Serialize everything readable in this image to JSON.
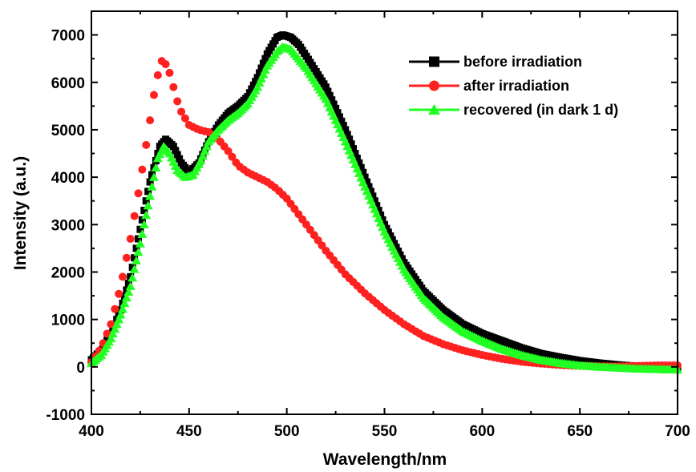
{
  "chart_data": {
    "type": "scatter",
    "xlabel": "Wavelength/nm",
    "ylabel": "Intensity (a.u.)",
    "xlim": [
      400,
      700
    ],
    "ylim": [
      -1000,
      7500
    ],
    "x_ticks": [
      400,
      450,
      500,
      550,
      600,
      650,
      700
    ],
    "y_ticks": [
      -1000,
      0,
      1000,
      2000,
      3000,
      4000,
      5000,
      6000,
      7000
    ],
    "grid": false,
    "legend_position": "top-right",
    "series": [
      {
        "name": "before irradiation",
        "color": "#000000",
        "marker": "square",
        "points": [
          [
            400,
            150
          ],
          [
            405,
            350
          ],
          [
            410,
            700
          ],
          [
            415,
            1200
          ],
          [
            420,
            1900
          ],
          [
            425,
            2900
          ],
          [
            430,
            3900
          ],
          [
            435,
            4650
          ],
          [
            438,
            4800
          ],
          [
            442,
            4650
          ],
          [
            446,
            4300
          ],
          [
            450,
            4100
          ],
          [
            455,
            4300
          ],
          [
            460,
            4750
          ],
          [
            465,
            5100
          ],
          [
            470,
            5350
          ],
          [
            475,
            5500
          ],
          [
            480,
            5700
          ],
          [
            485,
            6100
          ],
          [
            490,
            6600
          ],
          [
            495,
            6950
          ],
          [
            498,
            7000
          ],
          [
            502,
            6950
          ],
          [
            506,
            6800
          ],
          [
            510,
            6550
          ],
          [
            520,
            5900
          ],
          [
            530,
            5000
          ],
          [
            540,
            4000
          ],
          [
            550,
            3000
          ],
          [
            560,
            2200
          ],
          [
            570,
            1600
          ],
          [
            580,
            1200
          ],
          [
            590,
            900
          ],
          [
            600,
            700
          ],
          [
            610,
            550
          ],
          [
            620,
            400
          ],
          [
            630,
            280
          ],
          [
            640,
            200
          ],
          [
            650,
            130
          ],
          [
            660,
            80
          ],
          [
            670,
            40
          ],
          [
            680,
            10
          ],
          [
            690,
            -20
          ],
          [
            700,
            -40
          ]
        ]
      },
      {
        "name": "after irradiation",
        "color": "#ff2020",
        "marker": "circle",
        "points": [
          [
            400,
            100
          ],
          [
            405,
            400
          ],
          [
            410,
            900
          ],
          [
            415,
            1700
          ],
          [
            420,
            2700
          ],
          [
            425,
            3900
          ],
          [
            430,
            5200
          ],
          [
            433,
            6000
          ],
          [
            436,
            6450
          ],
          [
            439,
            6350
          ],
          [
            442,
            5900
          ],
          [
            445,
            5450
          ],
          [
            450,
            5100
          ],
          [
            455,
            5000
          ],
          [
            460,
            4950
          ],
          [
            465,
            4800
          ],
          [
            470,
            4550
          ],
          [
            475,
            4250
          ],
          [
            480,
            4100
          ],
          [
            485,
            4000
          ],
          [
            490,
            3900
          ],
          [
            495,
            3750
          ],
          [
            500,
            3550
          ],
          [
            510,
            3000
          ],
          [
            520,
            2450
          ],
          [
            530,
            1950
          ],
          [
            540,
            1550
          ],
          [
            550,
            1200
          ],
          [
            560,
            900
          ],
          [
            570,
            650
          ],
          [
            580,
            480
          ],
          [
            590,
            350
          ],
          [
            600,
            250
          ],
          [
            610,
            170
          ],
          [
            620,
            110
          ],
          [
            630,
            70
          ],
          [
            640,
            40
          ],
          [
            650,
            20
          ],
          [
            660,
            10
          ],
          [
            670,
            10
          ],
          [
            680,
            20
          ],
          [
            690,
            30
          ],
          [
            700,
            30
          ]
        ]
      },
      {
        "name": "recovered (in dark 1 d)",
        "color": "#22ff22",
        "marker": "triangle",
        "points": [
          [
            400,
            80
          ],
          [
            405,
            250
          ],
          [
            410,
            600
          ],
          [
            415,
            1100
          ],
          [
            420,
            1700
          ],
          [
            425,
            2600
          ],
          [
            430,
            3600
          ],
          [
            434,
            4400
          ],
          [
            437,
            4650
          ],
          [
            440,
            4500
          ],
          [
            444,
            4150
          ],
          [
            448,
            4000
          ],
          [
            452,
            4050
          ],
          [
            456,
            4350
          ],
          [
            460,
            4750
          ],
          [
            465,
            5000
          ],
          [
            470,
            5200
          ],
          [
            475,
            5350
          ],
          [
            480,
            5550
          ],
          [
            485,
            5900
          ],
          [
            490,
            6350
          ],
          [
            495,
            6650
          ],
          [
            498,
            6750
          ],
          [
            502,
            6700
          ],
          [
            506,
            6500
          ],
          [
            510,
            6300
          ],
          [
            520,
            5650
          ],
          [
            530,
            4750
          ],
          [
            540,
            3800
          ],
          [
            550,
            2850
          ],
          [
            560,
            2050
          ],
          [
            570,
            1450
          ],
          [
            580,
            1050
          ],
          [
            590,
            750
          ],
          [
            600,
            550
          ],
          [
            610,
            380
          ],
          [
            620,
            250
          ],
          [
            630,
            150
          ],
          [
            640,
            80
          ],
          [
            650,
            30
          ],
          [
            660,
            0
          ],
          [
            670,
            -20
          ],
          [
            680,
            -40
          ],
          [
            690,
            -50
          ],
          [
            700,
            -60
          ]
        ]
      }
    ]
  }
}
